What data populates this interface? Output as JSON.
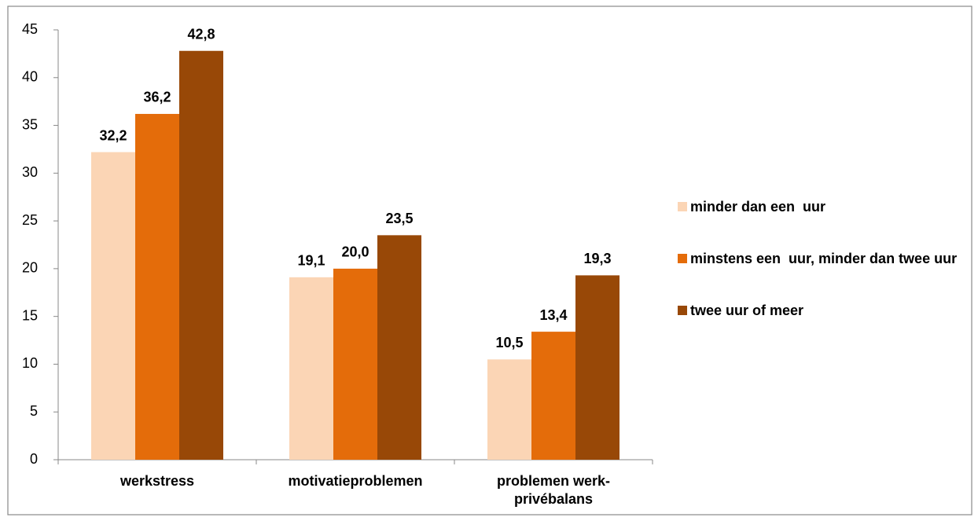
{
  "chart_data": {
    "type": "bar",
    "categories": [
      "werkstress",
      "motivatieproblemen",
      "problemen werk-privébalans"
    ],
    "series": [
      {
        "name": "minder dan een  uur",
        "color": "#fbd5b5",
        "values": [
          32.2,
          19.1,
          10.5
        ],
        "value_labels": [
          "32,2",
          "19,1",
          "10,5"
        ]
      },
      {
        "name": "minstens een  uur, minder dan twee uur",
        "color": "#e46c0a",
        "values": [
          36.2,
          20.0,
          13.4
        ],
        "value_labels": [
          "36,2",
          "20,0",
          "13,4"
        ]
      },
      {
        "name": "twee uur of meer",
        "color": "#984807",
        "values": [
          42.8,
          23.5,
          19.3
        ],
        "value_labels": [
          "42,8",
          "23,5",
          "19,3"
        ]
      }
    ],
    "ylim": [
      0,
      45
    ],
    "yticks": [
      0,
      5,
      10,
      15,
      20,
      25,
      30,
      35,
      40,
      45
    ],
    "legend": "right"
  }
}
